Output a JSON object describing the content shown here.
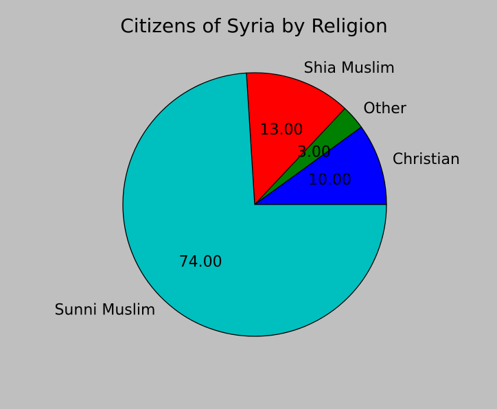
{
  "chart_data": {
    "type": "pie",
    "title": "Citizens of Syria by Religion",
    "start_angle_deg": 0,
    "direction": "counterclockwise",
    "slices": [
      {
        "label": "Christian",
        "value": 10,
        "pct_label": "10.00",
        "color": "#0000ff"
      },
      {
        "label": "Other",
        "value": 3,
        "pct_label": "3.00",
        "color": "#008000"
      },
      {
        "label": "Shia Muslim",
        "value": 13,
        "pct_label": "13.00",
        "color": "#ff0000"
      },
      {
        "label": "Sunni Muslim",
        "value": 74,
        "pct_label": "74.00",
        "color": "#00bfbf"
      }
    ]
  },
  "colors": {
    "background": "#bfbfbf"
  }
}
